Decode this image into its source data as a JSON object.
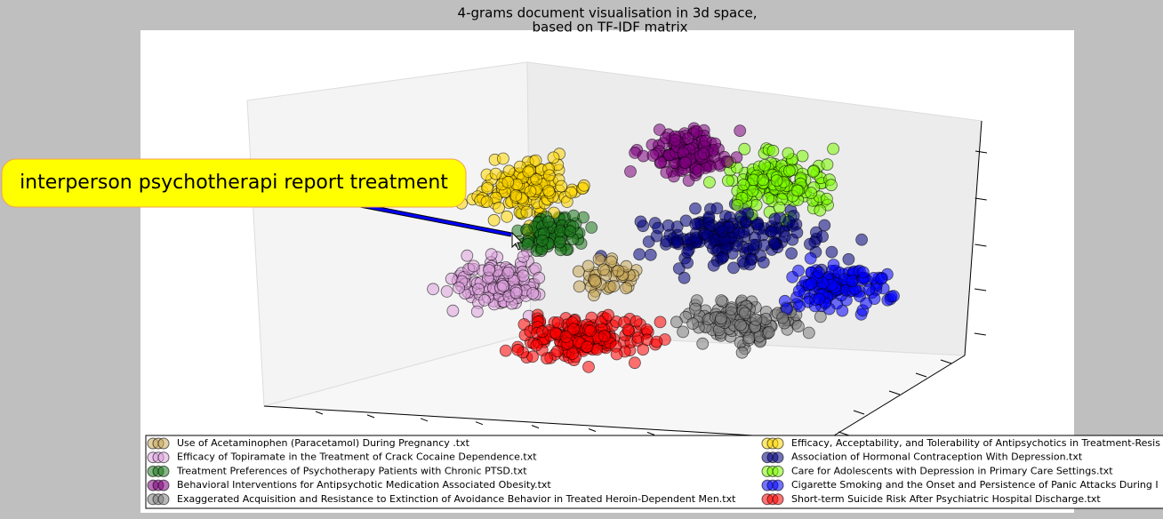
{
  "chart_data": {
    "type": "scatter3d",
    "title": "4-grams document visualisation in 3d space,",
    "subtitle": "based on TF-IDF matrix",
    "annotation": "interperson psychotherapi report treatment",
    "series": [
      {
        "name": "Use of Acetaminophen (Paracetamol) During Pregnancy .txt",
        "color": "#c8a75a"
      },
      {
        "name": "Efficacy of Topiramate in the Treatment of Crack Cocaine Dependence.txt",
        "color": "#dda0dd"
      },
      {
        "name": "Treatment Preferences of Psychotherapy Patients with Chronic PTSD.txt",
        "color": "#1e7a1e"
      },
      {
        "name": "Behavioral Interventions for Antipsychotic Medication Associated Obesity.txt",
        "color": "#800080"
      },
      {
        "name": "Exaggerated Acquisition and Resistance to Extinction of Avoidance Behavior in Treated Heroin-Dependent Men.txt",
        "color": "#808080"
      },
      {
        "name": "Efficacy, Acceptability, and Tolerability of Antipsychotics in Treatment-Resis",
        "color": "#ffd700"
      },
      {
        "name": "Association of Hormonal Contraception With Depression.txt",
        "color": "#000080"
      },
      {
        "name": "Care for Adolescents with Depression in Primary Care Settings.txt",
        "color": "#7cfc00"
      },
      {
        "name": "Cigarette Smoking and the Onset and Persistence of Panic Attacks During I",
        "color": "#0000ff"
      },
      {
        "name": "Short-term Suicide Risk After Psychiatric Hospital Discharge.txt",
        "color": "#ff0000"
      }
    ]
  }
}
